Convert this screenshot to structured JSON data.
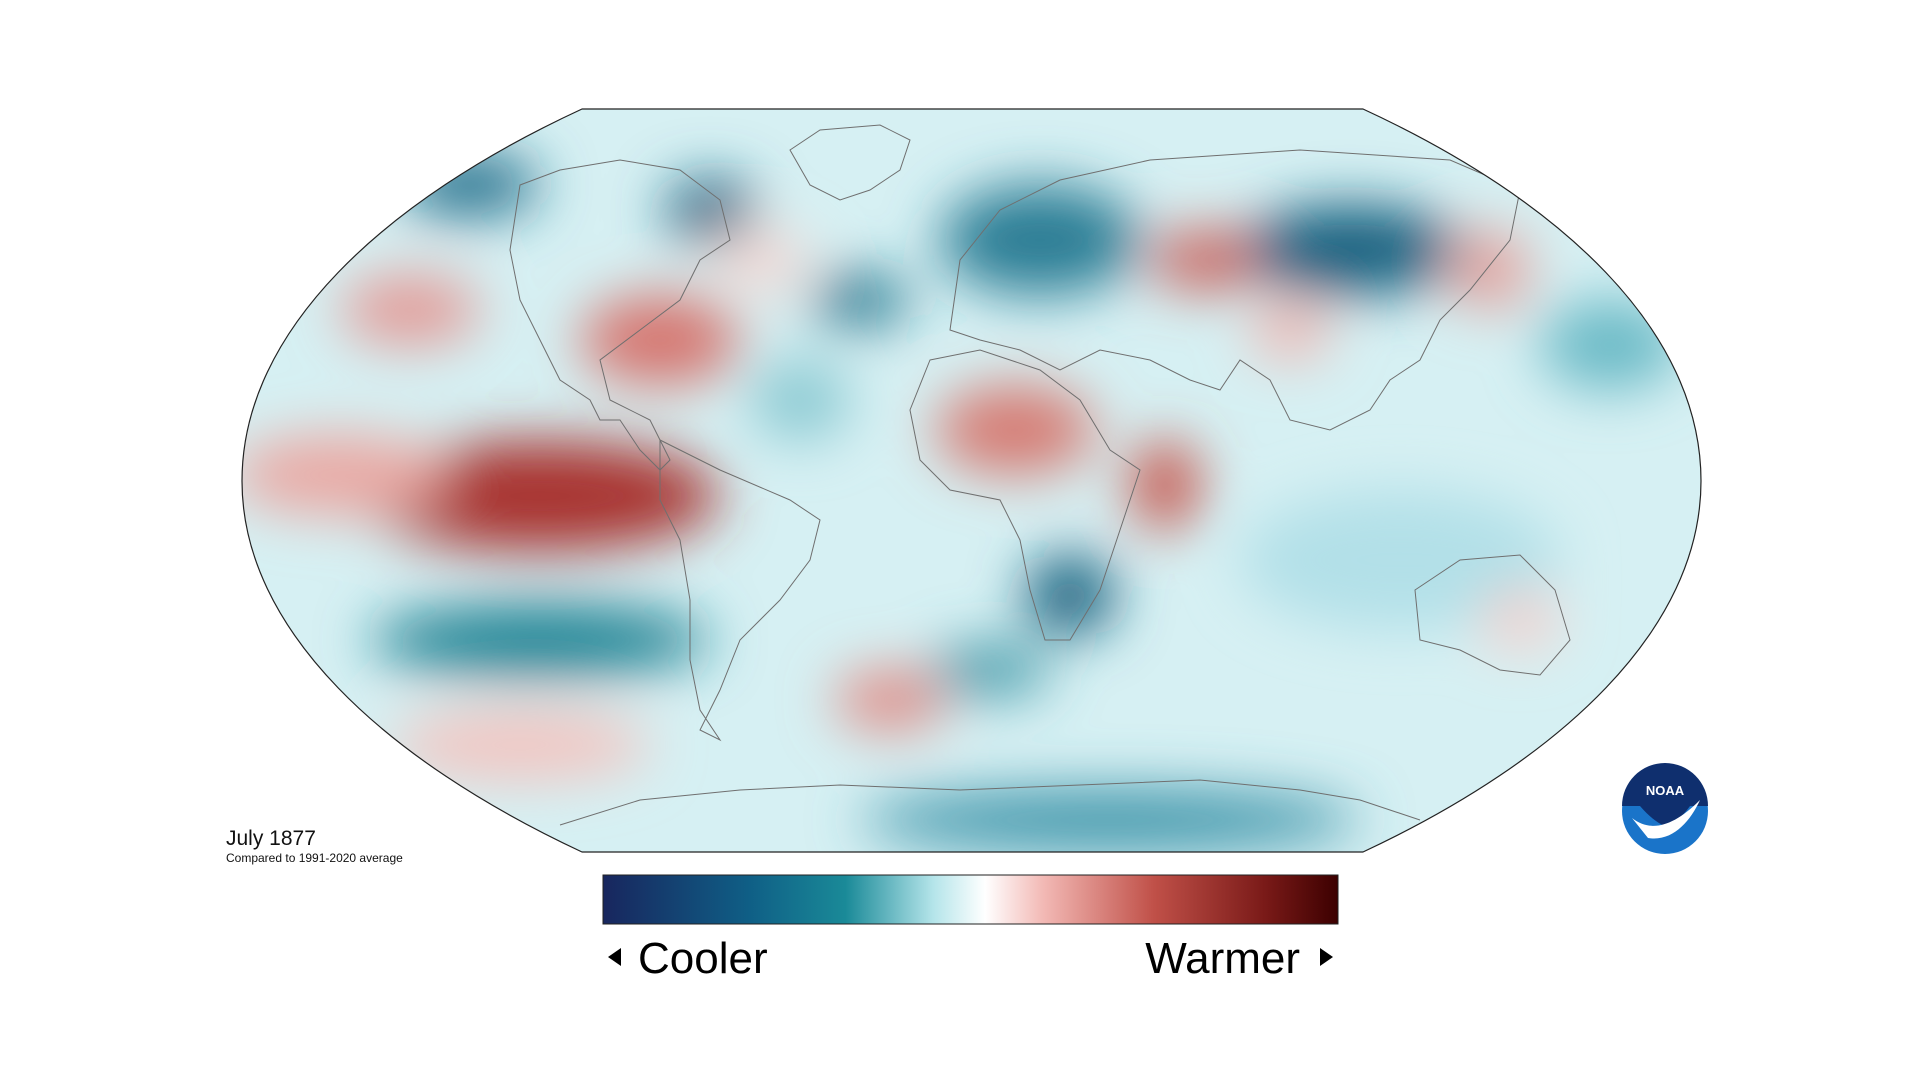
{
  "map": {
    "title": "July 1877",
    "subtitle": "Compared to 1991-2020 average",
    "legend": {
      "low_label": "Cooler",
      "high_label": "Warmer"
    }
  },
  "logo": {
    "text": "NOAA"
  }
}
